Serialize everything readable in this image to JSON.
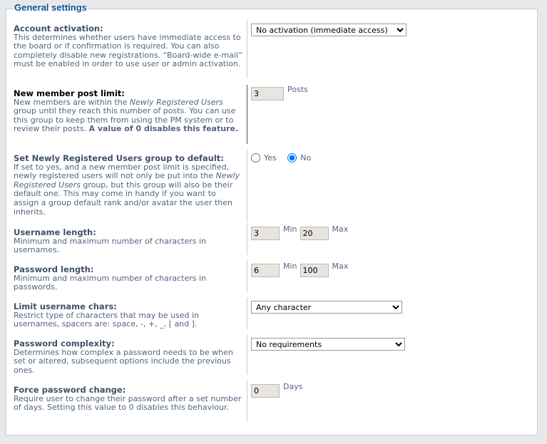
{
  "legend": "General settings",
  "rows": [
    {
      "title": "Account activation:",
      "desc": "This determines whether users have immediate access to the board or if confirmation is required. You can also completely disable new registrations. “Board-wide e-mail” must be enabled in order to use user or admin activation.",
      "select": "No activation (immediate access)"
    },
    {
      "title": "New member post limit:",
      "desc_pre": "New members are within the ",
      "desc_em": "Newly Registered Users",
      "desc_post": " group until they reach this number of posts. You can use this group to keep them from using the PM system or to review their posts. ",
      "desc_strong": "A value of 0 disables this feature.",
      "value": "3",
      "unit": "Posts"
    },
    {
      "title": "Set Newly Registered Users group to default:",
      "desc_pre": "If set to yes, and a new member post limit is specified, newly registered users will not only be put into the ",
      "desc_em": "Newly Registered Users",
      "desc_post": " group, but this group will also be their default one. This may come in handy if you want to assign a group default rank and/or avatar the user then inherits.",
      "yes": "Yes",
      "no": "No",
      "selected": "No"
    },
    {
      "title": "Username length:",
      "desc": "Minimum and maximum number of characters in usernames.",
      "min": "3",
      "min_label": "Min",
      "max": "20",
      "max_label": "Max"
    },
    {
      "title": "Password length:",
      "desc": "Minimum and maximum number of characters in passwords.",
      "min": "6",
      "min_label": "Min",
      "max": "100",
      "max_label": "Max"
    },
    {
      "title": "Limit username chars:",
      "desc": "Restrict type of characters that may be used in usernames, spacers are: space, -, +, _, [ and ].",
      "select": "Any character"
    },
    {
      "title": "Password complexity:",
      "desc": "Determines how complex a password needs to be when set or altered, subsequent options include the previous ones.",
      "select": "No requirements"
    },
    {
      "title": "Force password change:",
      "desc": "Require user to change their password after a set number of days. Setting this value to 0 disables this behaviour.",
      "value": "0",
      "unit": "Days"
    }
  ]
}
